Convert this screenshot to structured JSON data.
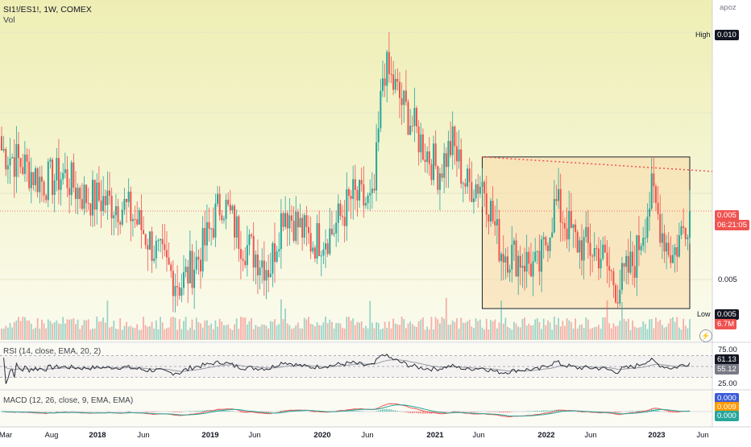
{
  "header": {
    "symbol_line": "SI1!/ES1!, 1W, COMEX",
    "volume_label": "Vol",
    "scale_mode": "apoz"
  },
  "price_axis": {
    "high_label": "High",
    "high_value": "0.010",
    "last_price": "0.005",
    "countdown": "06:21:05",
    "grid_value": "0.005",
    "low_label": "Low",
    "low_value": "0.005",
    "volume_value": "6.7M"
  },
  "rsi": {
    "label": "RSI (14, close, EMA, 20, 2)",
    "level_upper": "75.00",
    "level_lower": "25.00",
    "value": "61.13",
    "ma_value": "55.12"
  },
  "macd": {
    "label": "MACD (12, 26, close, 9, EMA, EMA)",
    "macd_value": "0.000",
    "signal_value": "0.009",
    "hist_value": "0.000"
  },
  "time_axis": {
    "ticks": [
      {
        "label": "Mar",
        "year": false
      },
      {
        "label": "Aug",
        "year": false
      },
      {
        "label": "2018",
        "year": true
      },
      {
        "label": "Jun",
        "year": false
      },
      {
        "label": "2019",
        "year": true
      },
      {
        "label": "Jun",
        "year": false
      },
      {
        "label": "2020",
        "year": true
      },
      {
        "label": "Jun",
        "year": false
      },
      {
        "label": "2021",
        "year": true
      },
      {
        "label": "Jun",
        "year": false
      },
      {
        "label": "2022",
        "year": true
      },
      {
        "label": "Jun",
        "year": false
      },
      {
        "label": "2023",
        "year": true
      },
      {
        "label": "Jun",
        "year": false
      }
    ]
  },
  "colors": {
    "up": "#26a69a",
    "down": "#ef5350",
    "bg_top": "#eeeeb4",
    "bg_bottom": "#fbfbef",
    "rsi_line": "#2a2e39",
    "rsi_ma": "#9598a1",
    "macd_line": "#ef5350",
    "signal_line": "#26a69a",
    "rect_fill": "#f9d9a8",
    "rect_stroke": "#1e222d"
  },
  "chart_data": {
    "type": "candlestick",
    "interval": "1W",
    "x_range": [
      "2017-03",
      "2023-06"
    ],
    "y_range": [
      0.005,
      0.01
    ],
    "log_scale": false,
    "grid": true,
    "last_price": 0.005,
    "anchors": [
      {
        "t": 0.0,
        "p": 0.018
      },
      {
        "t": 0.03,
        "p": 0.014
      },
      {
        "t": 0.06,
        "p": 0.009
      },
      {
        "t": 0.09,
        "p": 0.011
      },
      {
        "t": 0.12,
        "p": 0.005
      },
      {
        "t": 0.145,
        "p": 0.004
      },
      {
        "t": 0.18,
        "p": 0.002
      },
      {
        "t": 0.2,
        "p": -0.003
      },
      {
        "t": 0.235,
        "p": -0.014
      },
      {
        "t": 0.26,
        "p": -0.02
      },
      {
        "t": 0.29,
        "p": -0.011
      },
      {
        "t": 0.32,
        "p": 0.004
      },
      {
        "t": 0.35,
        "p": -0.008
      },
      {
        "t": 0.39,
        "p": -0.015
      },
      {
        "t": 0.41,
        "p": 0.002
      },
      {
        "t": 0.45,
        "p": -0.008
      },
      {
        "t": 0.48,
        "p": -0.005
      },
      {
        "t": 0.51,
        "p": 0.005
      },
      {
        "t": 0.54,
        "p": 0.002
      },
      {
        "t": 0.555,
        "p": 0.042
      },
      {
        "t": 0.58,
        "p": 0.032
      },
      {
        "t": 0.61,
        "p": 0.02
      },
      {
        "t": 0.635,
        "p": 0.012
      },
      {
        "t": 0.655,
        "p": 0.02
      },
      {
        "t": 0.675,
        "p": 0.008
      },
      {
        "t": 0.7,
        "p": 0.009
      },
      {
        "t": 0.725,
        "p": -0.01
      },
      {
        "t": 0.76,
        "p": -0.013
      },
      {
        "t": 0.78,
        "p": -0.016
      },
      {
        "t": 0.805,
        "p": 0.003
      },
      {
        "t": 0.835,
        "p": -0.008
      },
      {
        "t": 0.87,
        "p": -0.011
      },
      {
        "t": 0.895,
        "p": -0.021
      },
      {
        "t": 0.92,
        "p": -0.013
      },
      {
        "t": 0.945,
        "p": 0.006
      },
      {
        "t": 0.96,
        "p": -0.005
      },
      {
        "t": 0.975,
        "p": -0.012
      },
      {
        "t": 1.0,
        "p": 0.001
      }
    ],
    "annotations": [
      {
        "type": "rectangle",
        "from_t": 0.7,
        "to_t": 1.0
      },
      {
        "type": "dotted_resistance_line"
      },
      {
        "type": "horizontal_price_line",
        "value": 0.005
      }
    ]
  }
}
